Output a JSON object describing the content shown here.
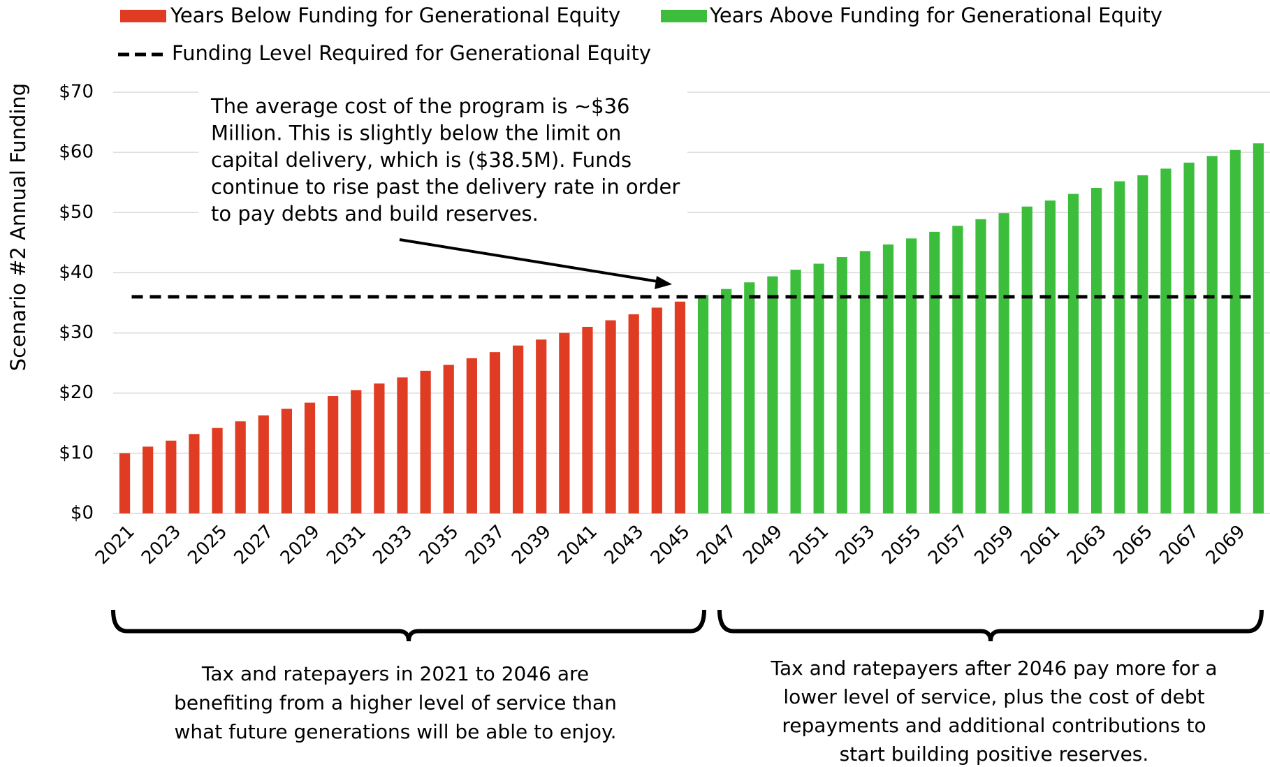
{
  "chart_data": {
    "type": "bar",
    "y_axis_label": "Scenario #2 Annual Funding",
    "categories": [
      "2021",
      null,
      "2023",
      null,
      "2025",
      null,
      "2027",
      null,
      "2029",
      null,
      "2031",
      null,
      "2033",
      null,
      "2035",
      null,
      "2037",
      null,
      "2039",
      null,
      "2041",
      null,
      "2043",
      null,
      "2045",
      null,
      "2047",
      null,
      "2049",
      null,
      "2051",
      null,
      "2053",
      null,
      "2055",
      null,
      "2057",
      null,
      "2059",
      null,
      "2061",
      null,
      "2063",
      null,
      "2065",
      null,
      "2067",
      null,
      "2069",
      null
    ],
    "series": [
      {
        "name": "Years Below Funding for Generational Equity",
        "color": "#e03c24",
        "values": [
          10,
          11.1,
          12.1,
          13.2,
          14.2,
          15.3,
          16.3,
          17.4,
          18.4,
          19.5,
          20.5,
          21.6,
          22.6,
          23.7,
          24.7,
          25.8,
          26.8,
          27.9,
          28.9,
          30,
          31,
          32.1,
          33.1,
          34.2,
          35.2,
          null,
          null,
          null,
          null,
          null,
          null,
          null,
          null,
          null,
          null,
          null,
          null,
          null,
          null,
          null,
          null,
          null,
          null,
          null,
          null,
          null,
          null,
          null,
          null,
          null
        ]
      },
      {
        "name": "Years Above Funding for Generational Equity",
        "color": "#3cbe3c",
        "values": [
          null,
          null,
          null,
          null,
          null,
          null,
          null,
          null,
          null,
          null,
          null,
          null,
          null,
          null,
          null,
          null,
          null,
          null,
          null,
          null,
          null,
          null,
          null,
          null,
          null,
          36.3,
          37.3,
          38.4,
          39.4,
          40.5,
          41.5,
          42.6,
          43.6,
          44.7,
          45.7,
          46.8,
          47.8,
          48.9,
          49.9,
          51,
          52,
          53.1,
          54.1,
          55.2,
          56.2,
          57.3,
          58.3,
          59.4,
          60.4,
          61.5
        ]
      }
    ],
    "reference_line": {
      "name": "Funding Level Required for Generational Equity",
      "value": 36,
      "color": "#000000"
    },
    "ylim": [
      0,
      70
    ],
    "yticks": [
      {
        "value": 0,
        "label": "$0"
      },
      {
        "value": 10,
        "label": "$10"
      },
      {
        "value": 20,
        "label": "$20"
      },
      {
        "value": 30,
        "label": "$30"
      },
      {
        "value": 40,
        "label": "$40"
      },
      {
        "value": 50,
        "label": "$50"
      },
      {
        "value": 60,
        "label": "$60"
      },
      {
        "value": 70,
        "label": "$70"
      }
    ],
    "grid": true,
    "callout": [
      "The average cost of the program is ~$36",
      "Million. This is slightly below the limit on",
      "capital delivery, which is ($38.5M). Funds",
      "continue to rise past the delivery rate in order",
      "to pay debts and build reserves."
    ],
    "left_note": [
      "Tax and ratepayers in 2021 to 2046 are",
      "benefiting from a higher level of service than",
      "what future generations will be able to enjoy."
    ],
    "right_note": [
      "Tax and ratepayers after 2046 pay more for a",
      "lower level of service, plus the cost of debt",
      "repayments and additional contributions to",
      "start building positive reserves."
    ]
  }
}
